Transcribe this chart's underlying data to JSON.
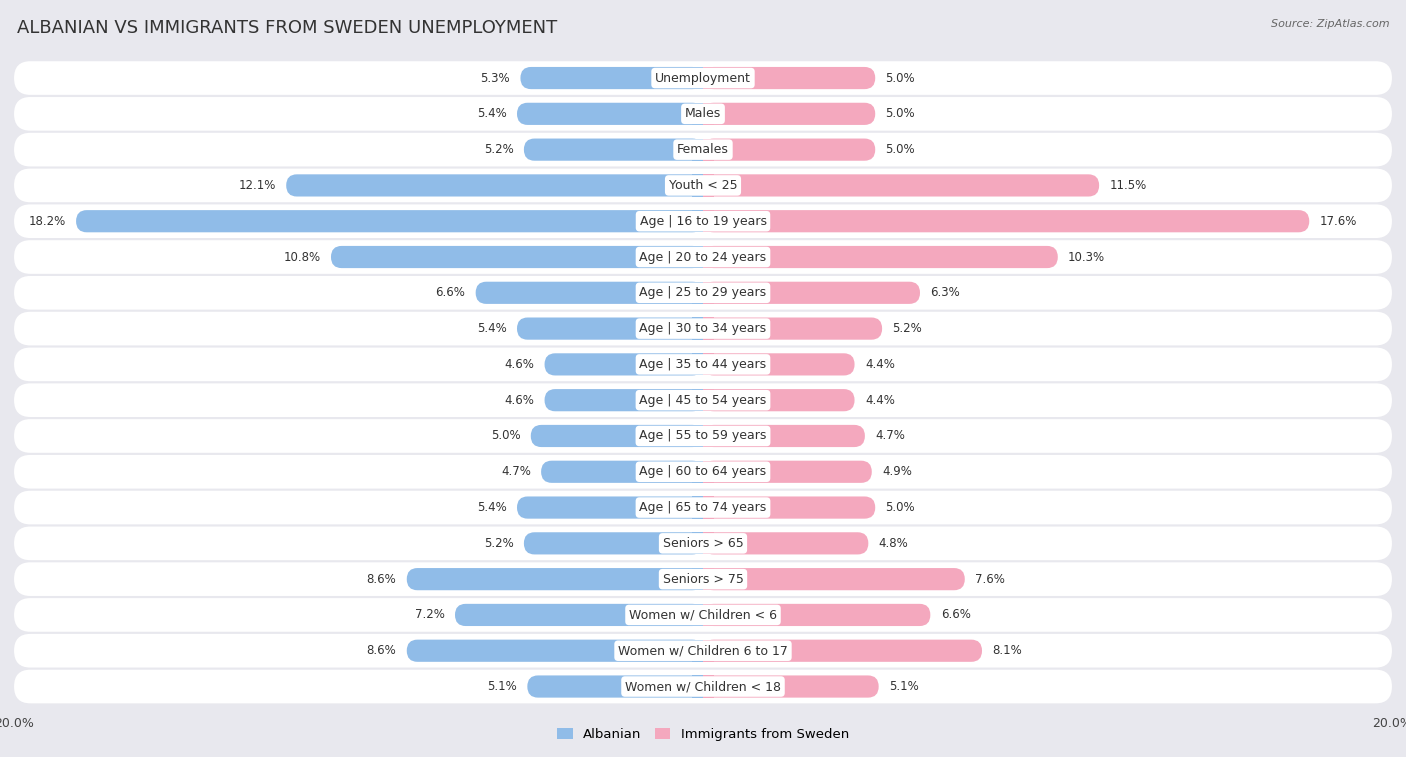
{
  "title": "ALBANIAN VS IMMIGRANTS FROM SWEDEN UNEMPLOYMENT",
  "source": "Source: ZipAtlas.com",
  "categories": [
    "Unemployment",
    "Males",
    "Females",
    "Youth < 25",
    "Age | 16 to 19 years",
    "Age | 20 to 24 years",
    "Age | 25 to 29 years",
    "Age | 30 to 34 years",
    "Age | 35 to 44 years",
    "Age | 45 to 54 years",
    "Age | 55 to 59 years",
    "Age | 60 to 64 years",
    "Age | 65 to 74 years",
    "Seniors > 65",
    "Seniors > 75",
    "Women w/ Children < 6",
    "Women w/ Children 6 to 17",
    "Women w/ Children < 18"
  ],
  "albanian": [
    5.3,
    5.4,
    5.2,
    12.1,
    18.2,
    10.8,
    6.6,
    5.4,
    4.6,
    4.6,
    5.0,
    4.7,
    5.4,
    5.2,
    8.6,
    7.2,
    8.6,
    5.1
  ],
  "immigrants": [
    5.0,
    5.0,
    5.0,
    11.5,
    17.6,
    10.3,
    6.3,
    5.2,
    4.4,
    4.4,
    4.7,
    4.9,
    5.0,
    4.8,
    7.6,
    6.6,
    8.1,
    5.1
  ],
  "albanian_color": "#90bce8",
  "immigrants_color": "#f4a8be",
  "row_bg_color": "#ffffff",
  "outer_bg_color": "#e8e8ee",
  "max_val": 20.0,
  "title_fontsize": 13,
  "label_fontsize": 9.0,
  "value_fontsize": 8.5,
  "tick_fontsize": 9.0
}
